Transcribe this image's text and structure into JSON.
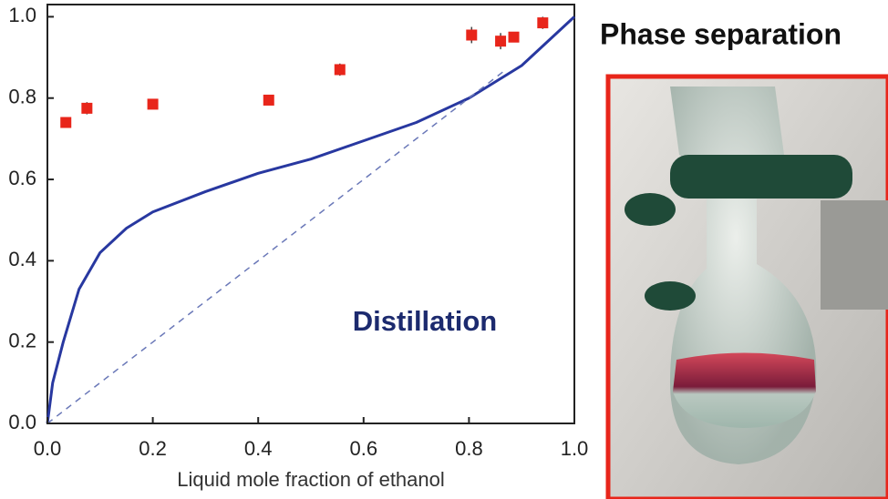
{
  "chart_data": {
    "type": "scatter",
    "x_label": "Liquid mole fraction of ethanol",
    "annotation": "Distillation",
    "xlim": [
      0,
      1
    ],
    "ylim": [
      0,
      1.03
    ],
    "xticks": [
      {
        "value": 0,
        "label": "0.0"
      },
      0.2,
      0.4,
      0.6,
      0.8,
      {
        "value": 1,
        "label": "1.0"
      }
    ],
    "yticks": [
      {
        "value": 0,
        "label": "0.0"
      },
      0.2,
      0.4,
      0.6,
      0.8,
      {
        "value": 1,
        "label": "1.0"
      }
    ],
    "series": [
      {
        "type": "line",
        "color": "#2838a0",
        "x": [
          0,
          0.01,
          0.03,
          0.06,
          0.1,
          0.15,
          0.2,
          0.3,
          0.4,
          0.5,
          0.6,
          0.7,
          0.8,
          0.9,
          1.0
        ],
        "values": [
          0,
          0.1,
          0.2,
          0.33,
          0.42,
          0.48,
          0.52,
          0.57,
          0.615,
          0.65,
          0.695,
          0.74,
          0.8,
          0.88,
          1.0
        ]
      },
      {
        "type": "line",
        "dashed": true,
        "color": "#6a78b8",
        "x": [
          0,
          0.87
        ],
        "values": [
          0,
          0.87
        ]
      },
      {
        "type": "scatter",
        "color": "#e8251a",
        "x": [
          0.035,
          0.075,
          0.2,
          0.42,
          0.555,
          0.805,
          0.86,
          0.885,
          0.94
        ],
        "values": [
          0.74,
          0.775,
          0.785,
          0.795,
          0.87,
          0.955,
          0.94,
          0.95,
          0.985
        ],
        "errors": [
          0.01,
          0.015,
          0.01,
          0.01,
          0.015,
          0.02,
          0.02,
          0.01,
          0.015
        ]
      }
    ]
  },
  "photo": {
    "caption": "Phase separation"
  }
}
